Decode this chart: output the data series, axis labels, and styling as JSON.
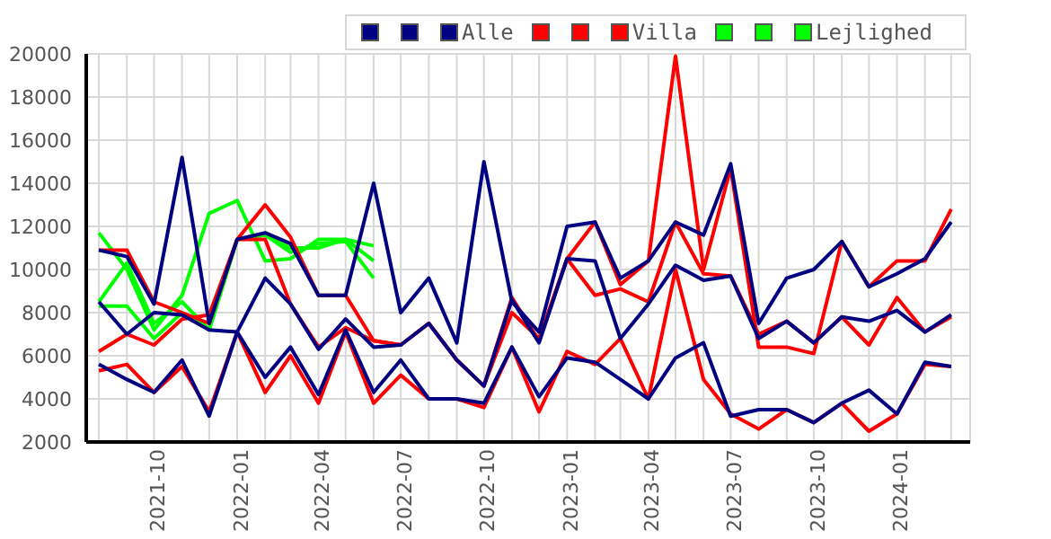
{
  "chart_data": {
    "type": "line",
    "x": [
      "2021-08",
      "2021-09",
      "2021-10",
      "2021-11",
      "2021-12",
      "2022-01",
      "2022-02",
      "2022-03",
      "2022-04",
      "2022-05",
      "2022-06",
      "2022-07",
      "2022-08",
      "2022-09",
      "2022-10",
      "2022-11",
      "2022-12",
      "2023-01",
      "2023-02",
      "2023-03",
      "2023-04",
      "2023-05",
      "2023-06",
      "2023-07",
      "2023-08",
      "2023-09",
      "2023-10",
      "2023-11",
      "2023-12",
      "2024-01",
      "2024-02",
      "2024-03"
    ],
    "series": [
      {
        "color": "#000080",
        "values": [
          10900,
          10600,
          8400,
          15200,
          7500,
          11400,
          11700,
          11200,
          8800,
          8800,
          14000,
          8000,
          9600,
          6600,
          15000,
          8500,
          7100,
          12000,
          12200,
          9600,
          10400,
          12200,
          11600,
          14900,
          7500,
          9600,
          10000,
          11300,
          9200,
          9800,
          10500,
          12200
        ]
      },
      {
        "color": "#000080",
        "values": [
          8500,
          7000,
          8000,
          7900,
          7200,
          7100,
          9600,
          8400,
          6300,
          7700,
          6400,
          6500,
          7500,
          5800,
          4600,
          8600,
          6600,
          10500,
          10400,
          6800,
          8400,
          10200,
          9500,
          9700,
          6800,
          7600,
          6600,
          7800,
          7600,
          8100,
          7100,
          7900
        ]
      },
      {
        "name": "Alle",
        "color": "#000080",
        "values": [
          5600,
          4900,
          4300,
          5800,
          3200,
          7100,
          5000,
          6400,
          4200,
          7200,
          4300,
          5800,
          4000,
          4000,
          3800,
          6400,
          4100,
          5900,
          5700,
          4900,
          4000,
          5900,
          6600,
          3200,
          3500,
          3500,
          2900,
          3800,
          4400,
          3300,
          5700,
          5500
        ]
      },
      {
        "color": "#ff0000",
        "values": [
          10900,
          10900,
          8500,
          8000,
          7500,
          11400,
          13000,
          11500,
          8800,
          8800,
          6700,
          6500,
          7500,
          5800,
          4600,
          8700,
          6700,
          10500,
          12200,
          9300,
          10400,
          19900,
          10000,
          14700,
          6400,
          6400,
          6100,
          11300,
          9200,
          10400,
          10400,
          12800
        ]
      },
      {
        "color": "#ff0000",
        "values": [
          6200,
          7000,
          6500,
          7700,
          7900,
          11400,
          11400,
          8400,
          6400,
          7300,
          6700,
          6500,
          7500,
          5800,
          4600,
          8000,
          6800,
          10500,
          8800,
          9100,
          8500,
          12200,
          9800,
          9700,
          7000,
          7600,
          6600,
          7800,
          6500,
          8700,
          7100,
          7800
        ]
      },
      {
        "name": "Villa",
        "color": "#ff0000",
        "values": [
          5300,
          5600,
          4300,
          5500,
          3400,
          7100,
          4300,
          6000,
          3800,
          7100,
          3800,
          5100,
          4000,
          4000,
          3600,
          6400,
          3400,
          6200,
          5600,
          6800,
          4000,
          10000,
          4900,
          3300,
          2600,
          3500,
          2900,
          3800,
          2500,
          3300,
          5600,
          5500
        ]
      },
      {
        "color": "#00ff00",
        "values": [
          11700,
          10000,
          7200,
          8800,
          12600,
          13200,
          10400,
          10500,
          11400,
          11400,
          11100,
          null,
          null,
          null,
          null,
          null,
          null,
          null,
          null,
          null,
          null,
          null,
          null,
          null,
          null,
          null,
          null,
          null,
          null,
          null,
          null,
          null
        ]
      },
      {
        "color": "#00ff00",
        "values": [
          8500,
          10300,
          7500,
          8500,
          7200,
          11400,
          11600,
          11000,
          11000,
          11400,
          10400,
          null,
          null,
          null,
          null,
          null,
          null,
          null,
          null,
          null,
          null,
          null,
          null,
          null,
          null,
          null,
          null,
          null,
          null,
          null,
          null,
          null
        ]
      },
      {
        "name": "Lejlighed",
        "color": "#00ff00",
        "values": [
          8300,
          8300,
          6800,
          8000,
          7200,
          11400,
          11600,
          10800,
          11200,
          11300,
          9600,
          null,
          null,
          null,
          null,
          null,
          null,
          null,
          null,
          null,
          null,
          null,
          null,
          null,
          null,
          null,
          null,
          null,
          null,
          null,
          null,
          null
        ]
      }
    ],
    "xlim": [
      "2021-07-18",
      "2024-03-22"
    ],
    "xticks": [
      {
        "value": "2021-08",
        "label": null
      },
      {
        "value": "2021-09",
        "label": null
      },
      "2021-10",
      {
        "value": "2021-11",
        "label": null
      },
      {
        "value": "2021-12",
        "label": null
      },
      "2022-01",
      {
        "value": "2022-02",
        "label": null
      },
      {
        "value": "2022-03",
        "label": null
      },
      "2022-04",
      {
        "value": "2022-05",
        "label": null
      },
      {
        "value": "2022-06",
        "label": null
      },
      "2022-07",
      {
        "value": "2022-08",
        "label": null
      },
      {
        "value": "2022-09",
        "label": null
      },
      "2022-10",
      {
        "value": "2022-11",
        "label": null
      },
      {
        "value": "2022-12",
        "label": null
      },
      "2023-01",
      {
        "value": "2023-02",
        "label": null
      },
      {
        "value": "2023-03",
        "label": null
      },
      "2023-04",
      {
        "value": "2023-05",
        "label": null
      },
      {
        "value": "2023-06",
        "label": null
      },
      "2023-07",
      {
        "value": "2023-08",
        "label": null
      },
      {
        "value": "2023-09",
        "label": null
      },
      "2023-10",
      {
        "value": "2023-11",
        "label": null
      },
      {
        "value": "2023-12",
        "label": null
      },
      "2024-01",
      {
        "value": "2024-02",
        "label": null
      },
      {
        "value": "2024-03",
        "label": null
      }
    ],
    "ylim": [
      2000,
      20000
    ],
    "yticks": [
      2000,
      4000,
      6000,
      8000,
      10000,
      12000,
      14000,
      16000,
      18000,
      20000
    ],
    "grid": true,
    "legend": "top right",
    "marker": "none",
    "line_style": "solid"
  }
}
